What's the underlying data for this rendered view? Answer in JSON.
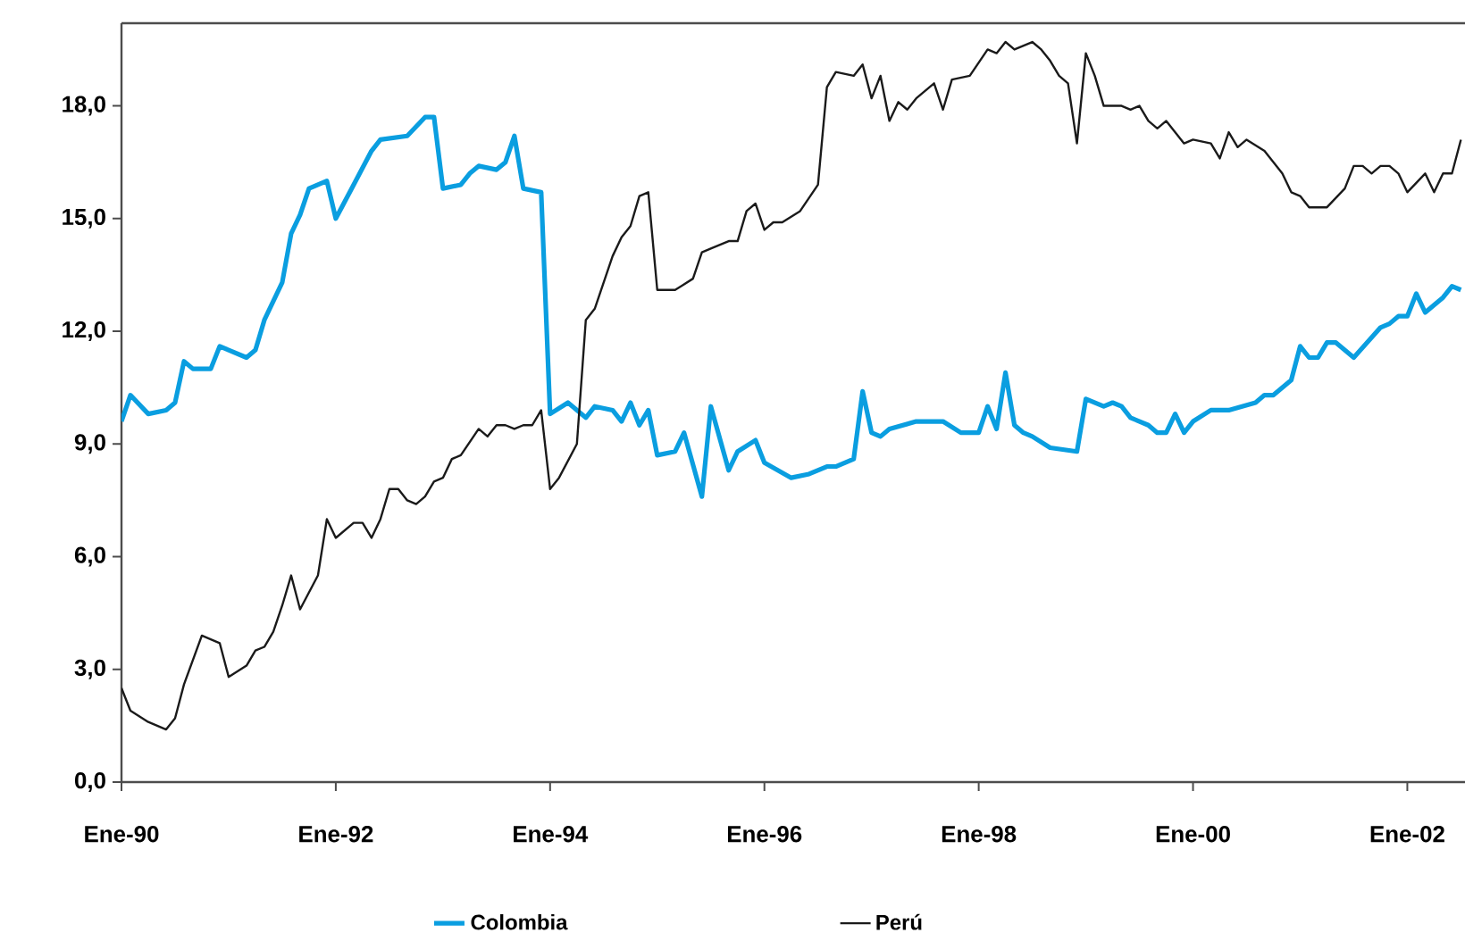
{
  "chart_data": {
    "type": "line",
    "xlim": [
      "1990-01",
      "2002-07-15"
    ],
    "ylim": [
      0,
      20.2
    ],
    "xticks": [
      {
        "value": "1990-01",
        "label": "Ene-90"
      },
      {
        "value": "1992-01",
        "label": "Ene-92"
      },
      {
        "value": "1994-01",
        "label": "Ene-94"
      },
      {
        "value": "1996-01",
        "label": "Ene-96"
      },
      {
        "value": "1998-01",
        "label": "Ene-98"
      },
      {
        "value": "2000-01",
        "label": "Ene-00"
      },
      {
        "value": "2002-01",
        "label": "Ene-02"
      }
    ],
    "yticks": [
      {
        "value": 0,
        "label": "0,0"
      },
      {
        "value": 3,
        "label": "3,0"
      },
      {
        "value": 6,
        "label": "6,0"
      },
      {
        "value": 9,
        "label": "9,0"
      },
      {
        "value": 12,
        "label": "12,0"
      },
      {
        "value": 15,
        "label": "15,0"
      },
      {
        "value": 18,
        "label": "18,0"
      }
    ],
    "grid": false,
    "legend": "bottom",
    "line_style": "solid",
    "marker": "none",
    "series": [
      {
        "name": "Colombia",
        "color": "#0a9ee0",
        "x": [
          "1990-01",
          "1990-02",
          "1990-04",
          "1990-06",
          "1990-07",
          "1990-08",
          "1990-09",
          "1990-11",
          "1990-12",
          "1991-01",
          "1991-03",
          "1991-04",
          "1991-05",
          "1991-07",
          "1991-08",
          "1991-09",
          "1991-10",
          "1991-11",
          "1991-12",
          "1992-01",
          "1992-03",
          "1992-05",
          "1992-06",
          "1992-09",
          "1992-11",
          "1992-12",
          "1993-01",
          "1993-03",
          "1993-04",
          "1993-05",
          "1993-07",
          "1993-08",
          "1993-09",
          "1993-10",
          "1993-12",
          "1994-01",
          "1994-03",
          "1994-05",
          "1994-06",
          "1994-08",
          "1994-09",
          "1994-10",
          "1994-11",
          "1994-12",
          "1995-01",
          "1995-03",
          "1995-04",
          "1995-06",
          "1995-07",
          "1995-09",
          "1995-10",
          "1995-12",
          "1996-01",
          "1996-04",
          "1996-06",
          "1996-08",
          "1996-09",
          "1996-11",
          "1996-12",
          "1997-01",
          "1997-02",
          "1997-03",
          "1997-06",
          "1997-09",
          "1997-11",
          "1998-01",
          "1998-02",
          "1998-03",
          "1998-04",
          "1998-05",
          "1998-06",
          "1998-07",
          "1998-09",
          "1998-12",
          "1999-01",
          "1999-03",
          "1999-04",
          "1999-05",
          "1999-06",
          "1999-08",
          "1999-09",
          "1999-10",
          "1999-11",
          "1999-12",
          "2000-01",
          "2000-03",
          "2000-05",
          "2000-08",
          "2000-09",
          "2000-10",
          "2000-12",
          "2001-01",
          "2001-02",
          "2001-03",
          "2001-04",
          "2001-05",
          "2001-07",
          "2001-10",
          "2001-11",
          "2001-12",
          "2002-01",
          "2002-02",
          "2002-03",
          "2002-05",
          "2002-06",
          "2002-07"
        ],
        "values": [
          9.6,
          10.3,
          9.8,
          9.9,
          10.1,
          11.2,
          11.0,
          11.0,
          11.6,
          11.5,
          11.3,
          11.5,
          12.3,
          13.3,
          14.6,
          15.1,
          15.8,
          15.9,
          16.0,
          15.0,
          15.9,
          16.8,
          17.1,
          17.2,
          17.7,
          17.7,
          15.8,
          15.9,
          16.2,
          16.4,
          16.3,
          16.5,
          17.2,
          15.8,
          15.7,
          9.8,
          10.1,
          9.7,
          10.0,
          9.9,
          9.6,
          10.1,
          9.5,
          9.9,
          8.7,
          8.8,
          9.3,
          7.6,
          10.0,
          8.3,
          8.8,
          9.1,
          8.5,
          8.1,
          8.2,
          8.4,
          8.4,
          8.6,
          10.4,
          9.3,
          9.2,
          9.4,
          9.6,
          9.6,
          9.3,
          9.3,
          10.0,
          9.4,
          10.9,
          9.5,
          9.3,
          9.2,
          8.9,
          8.8,
          10.2,
          10.0,
          10.1,
          10.0,
          9.7,
          9.5,
          9.3,
          9.3,
          9.8,
          9.3,
          9.6,
          9.9,
          9.9,
          10.1,
          10.3,
          10.3,
          10.7,
          11.6,
          11.3,
          11.3,
          11.7,
          11.7,
          11.3,
          12.1,
          12.2,
          12.4,
          12.4,
          13.0,
          12.5,
          12.9,
          13.2,
          13.1
        ]
      },
      {
        "name": "Perú",
        "color": "#1a1a1a",
        "x": [
          "1990-01",
          "1990-02",
          "1990-04",
          "1990-06",
          "1990-07",
          "1990-08",
          "1990-10",
          "1990-12",
          "1991-01",
          "1991-03",
          "1991-04",
          "1991-05",
          "1991-06",
          "1991-07",
          "1991-08",
          "1991-09",
          "1991-11",
          "1991-12",
          "1992-01",
          "1992-03",
          "1992-04",
          "1992-05",
          "1992-06",
          "1992-07",
          "1992-08",
          "1992-09",
          "1992-10",
          "1992-11",
          "1992-12",
          "1993-01",
          "1993-02",
          "1993-03",
          "1993-05",
          "1993-06",
          "1993-07",
          "1993-08",
          "1993-09",
          "1993-10",
          "1993-11",
          "1993-12",
          "1994-01",
          "1994-02",
          "1994-04",
          "1994-05",
          "1994-06",
          "1994-08",
          "1994-09",
          "1994-10",
          "1994-11",
          "1994-12",
          "1995-01",
          "1995-03",
          "1995-05",
          "1995-06",
          "1995-07",
          "1995-09",
          "1995-10",
          "1995-11",
          "1995-12",
          "1996-01",
          "1996-02",
          "1996-03",
          "1996-05",
          "1996-07",
          "1996-08",
          "1996-09",
          "1996-11",
          "1996-12",
          "1997-01",
          "1997-02",
          "1997-03",
          "1997-04",
          "1997-05",
          "1997-06",
          "1997-08",
          "1997-09",
          "1997-10",
          "1997-12",
          "1998-02",
          "1998-03",
          "1998-04",
          "1998-05",
          "1998-07",
          "1998-08",
          "1998-09",
          "1998-10",
          "1998-11",
          "1998-12",
          "1999-01",
          "1999-02",
          "1999-03",
          "1999-05",
          "1999-06",
          "1999-07",
          "1999-08",
          "1999-09",
          "1999-10",
          "1999-12",
          "2000-01",
          "2000-03",
          "2000-04",
          "2000-05",
          "2000-06",
          "2000-07",
          "2000-09",
          "2000-11",
          "2000-12",
          "2001-01",
          "2001-02",
          "2001-04",
          "2001-06",
          "2001-07",
          "2001-08",
          "2001-09",
          "2001-10",
          "2001-11",
          "2001-12",
          "2002-01",
          "2002-03",
          "2002-04",
          "2002-05",
          "2002-06",
          "2002-07"
        ],
        "values": [
          2.5,
          1.9,
          1.6,
          1.4,
          1.7,
          2.6,
          3.9,
          3.7,
          2.8,
          3.1,
          3.5,
          3.6,
          4.0,
          4.7,
          5.5,
          4.6,
          5.5,
          7.0,
          6.5,
          6.9,
          6.9,
          6.5,
          7.0,
          7.8,
          7.8,
          7.5,
          7.4,
          7.6,
          8.0,
          8.1,
          8.6,
          8.7,
          9.4,
          9.2,
          9.5,
          9.5,
          9.4,
          9.5,
          9.5,
          9.9,
          7.8,
          8.1,
          9.0,
          12.3,
          12.6,
          14.0,
          14.5,
          14.8,
          15.6,
          15.7,
          13.1,
          13.1,
          13.4,
          14.1,
          14.2,
          14.4,
          14.4,
          15.2,
          15.4,
          14.7,
          14.9,
          14.9,
          15.2,
          15.9,
          18.5,
          18.9,
          18.8,
          19.1,
          18.2,
          18.8,
          17.6,
          18.1,
          17.9,
          18.2,
          18.6,
          17.9,
          18.7,
          18.8,
          19.5,
          19.4,
          19.7,
          19.5,
          19.7,
          19.5,
          19.2,
          18.8,
          18.6,
          17.0,
          19.4,
          18.8,
          18.0,
          18.0,
          17.9,
          18.0,
          17.6,
          17.4,
          17.6,
          17.0,
          17.1,
          17.0,
          16.6,
          17.3,
          16.9,
          17.1,
          16.8,
          16.2,
          15.7,
          15.6,
          15.3,
          15.3,
          15.8,
          16.4,
          16.4,
          16.2,
          16.4,
          16.4,
          16.2,
          15.7,
          16.2,
          15.7,
          16.2,
          16.2,
          17.1
        ]
      }
    ]
  }
}
